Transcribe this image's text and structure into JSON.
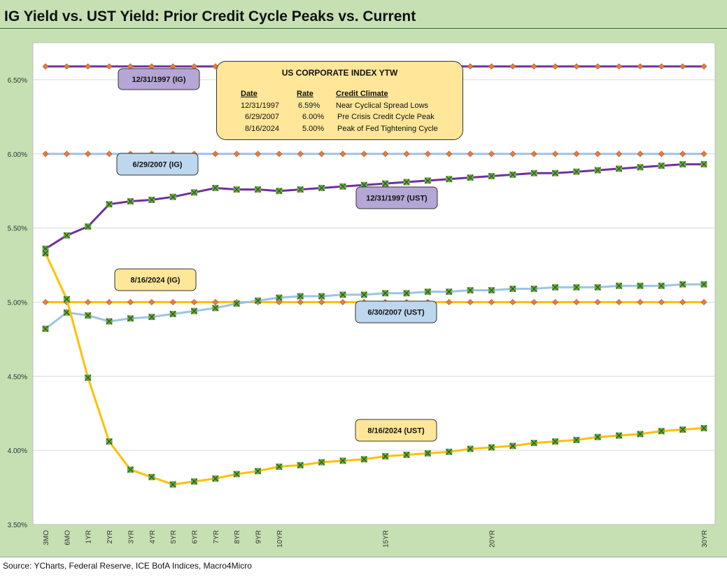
{
  "title": "IG Yield vs. UST Yield: Prior Credit Cycle Peaks vs. Current",
  "source": "Source: YCharts, Federal Reserve, ICE BofA Indices, Macro4Micro",
  "colors": {
    "frame": "#c6e0b4",
    "purple": "#7030a0",
    "lightblue": "#9dc3e6",
    "gold": "#ffc000",
    "ig_marker": "#ed7d31",
    "ust_marker": "#70ad47"
  },
  "infobox": {
    "title": "US CORPORATE  INDEX YTW",
    "headers": [
      "Date",
      "Rate",
      "Credit Climate"
    ],
    "rows": [
      [
        "12/31/1997",
        "6.59%",
        "Near Cyclical Spread Lows"
      ],
      [
        "6/29/2007",
        "6.00%",
        "Pre Crisis Credit Cycle Peak"
      ],
      [
        "8/16/2024",
        "5.00%",
        "Peak of Fed Tightening Cycle"
      ]
    ]
  },
  "chart_data": {
    "type": "line",
    "title": "IG Yield vs. UST Yield: Prior Credit Cycle Peaks vs. Current",
    "x": [
      0.25,
      0.5,
      1,
      2,
      3,
      4,
      5,
      6,
      7,
      8,
      9,
      10,
      11,
      12,
      13,
      14,
      15,
      16,
      17,
      18,
      19,
      20,
      21,
      22,
      23,
      24,
      25,
      26,
      27,
      28,
      29,
      30
    ],
    "x_tick_labels": [
      "3MO",
      "6MO",
      "1YR",
      "2YR",
      "3YR",
      "4YR",
      "5YR",
      "6YR",
      "7YR",
      "8YR",
      "9YR",
      "10YR",
      "",
      "",
      "",
      "",
      "15YR",
      "",
      "",
      "",
      "",
      "20YR",
      "",
      "",
      "",
      "",
      "",
      "",
      "",
      "",
      "",
      "30YR"
    ],
    "y_ticks": [
      "3.50%",
      "4.00%",
      "4.50%",
      "5.00%",
      "5.50%",
      "6.00%",
      "6.50%"
    ],
    "ylim": [
      3.5,
      6.75
    ],
    "grid": "horizontal",
    "series": [
      {
        "name": "12/31/1997 (IG)",
        "color": "#7030a0",
        "marker": "diamond",
        "values": [
          6.59,
          6.59,
          6.59,
          6.59,
          6.59,
          6.59,
          6.59,
          6.59,
          6.59,
          6.59,
          6.59,
          6.59,
          6.59,
          6.59,
          6.59,
          6.59,
          6.59,
          6.59,
          6.59,
          6.59,
          6.59,
          6.59,
          6.59,
          6.59,
          6.59,
          6.59,
          6.59,
          6.59,
          6.59,
          6.59,
          6.59,
          6.59
        ]
      },
      {
        "name": "6/29/2007 (IG)",
        "color": "#9dc3e6",
        "marker": "diamond",
        "values": [
          6.0,
          6.0,
          6.0,
          6.0,
          6.0,
          6.0,
          6.0,
          6.0,
          6.0,
          6.0,
          6.0,
          6.0,
          6.0,
          6.0,
          6.0,
          6.0,
          6.0,
          6.0,
          6.0,
          6.0,
          6.0,
          6.0,
          6.0,
          6.0,
          6.0,
          6.0,
          6.0,
          6.0,
          6.0,
          6.0,
          6.0,
          6.0
        ]
      },
      {
        "name": "8/16/2024 (IG)",
        "color": "#ffc000",
        "marker": "diamond",
        "values": [
          5.0,
          5.0,
          5.0,
          5.0,
          5.0,
          5.0,
          5.0,
          5.0,
          5.0,
          5.0,
          5.0,
          5.0,
          5.0,
          5.0,
          5.0,
          5.0,
          5.0,
          5.0,
          5.0,
          5.0,
          5.0,
          5.0,
          5.0,
          5.0,
          5.0,
          5.0,
          5.0,
          5.0,
          5.0,
          5.0,
          5.0,
          5.0
        ]
      },
      {
        "name": "12/31/1997 (UST)",
        "color": "#7030a0",
        "marker": "x",
        "values": [
          5.36,
          5.45,
          5.51,
          5.66,
          5.68,
          5.69,
          5.71,
          5.74,
          5.77,
          5.76,
          5.76,
          5.75,
          5.76,
          5.77,
          5.78,
          5.79,
          5.8,
          5.81,
          5.82,
          5.83,
          5.84,
          5.85,
          5.86,
          5.87,
          5.87,
          5.88,
          5.89,
          5.9,
          5.91,
          5.92,
          5.93,
          5.93
        ]
      },
      {
        "name": "6/30/2007 (UST)",
        "color": "#9dc3e6",
        "marker": "x",
        "values": [
          4.82,
          4.93,
          4.91,
          4.87,
          4.89,
          4.9,
          4.92,
          4.94,
          4.96,
          4.99,
          5.01,
          5.03,
          5.04,
          5.04,
          5.05,
          5.05,
          5.06,
          5.06,
          5.07,
          5.07,
          5.08,
          5.08,
          5.09,
          5.09,
          5.1,
          5.1,
          5.1,
          5.11,
          5.11,
          5.11,
          5.12,
          5.12
        ]
      },
      {
        "name": "8/16/2024 (UST)",
        "color": "#ffc000",
        "marker": "x",
        "values": [
          5.33,
          5.02,
          4.49,
          4.06,
          3.87,
          3.82,
          3.77,
          3.79,
          3.81,
          3.84,
          3.86,
          3.89,
          3.9,
          3.92,
          3.93,
          3.94,
          3.96,
          3.97,
          3.98,
          3.99,
          4.01,
          4.02,
          4.03,
          4.05,
          4.06,
          4.07,
          4.09,
          4.1,
          4.11,
          4.13,
          4.14,
          4.15
        ]
      }
    ]
  }
}
